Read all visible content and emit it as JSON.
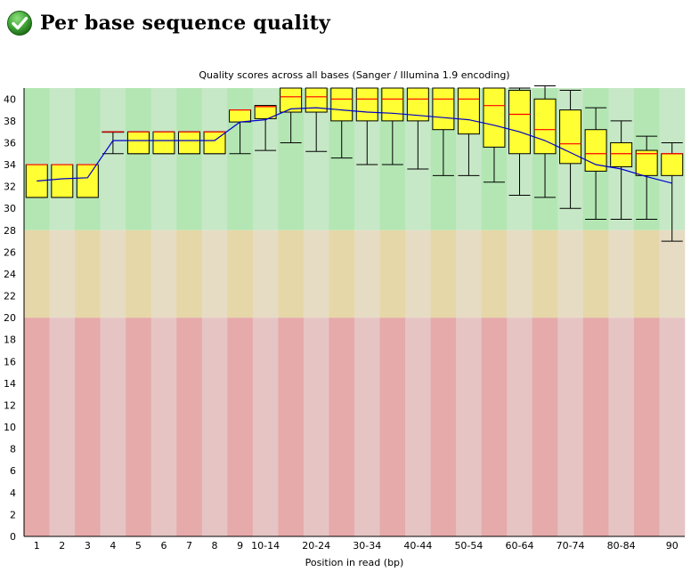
{
  "page": {
    "title": "Per base sequence quality",
    "status_icon": "check-icon",
    "status_color": "#3fa535"
  },
  "chart_data": {
    "type": "box",
    "title": "Quality scores across all bases (Sanger / Illumina 1.9 encoding)",
    "xlabel": "Position in read (bp)",
    "ylabel": "",
    "ylim": [
      0,
      41
    ],
    "yticks": [
      0,
      2,
      4,
      6,
      8,
      10,
      12,
      14,
      16,
      18,
      20,
      22,
      24,
      26,
      28,
      30,
      32,
      34,
      36,
      38,
      40
    ],
    "legend": "none",
    "zones": [
      {
        "from": 28,
        "to": 41,
        "colors": [
          "#b3e6b3",
          "#c6e8c6"
        ]
      },
      {
        "from": 20,
        "to": 28,
        "colors": [
          "#e6d7a8",
          "#e6dcc4"
        ]
      },
      {
        "from": 0,
        "to": 20,
        "colors": [
          "#e6aaaa",
          "#e6c4c4"
        ]
      }
    ],
    "box_color": "#ffff33",
    "median_color": "#ff0000",
    "mean_color": "#0000cc",
    "categories": [
      "1",
      "2",
      "3",
      "4",
      "5",
      "6",
      "7",
      "8",
      "9",
      "10-14",
      "15-19",
      "20-24",
      "25-29",
      "30-34",
      "35-39",
      "40-44",
      "45-49",
      "50-54",
      "55-59",
      "60-64",
      "65-69",
      "70-74",
      "75-79",
      "80-84",
      "85-89",
      "90"
    ],
    "tick_labels": [
      "1",
      "2",
      "3",
      "4",
      "5",
      "6",
      "7",
      "8",
      "9",
      "10-14",
      "",
      "20-24",
      "",
      "30-34",
      "",
      "40-44",
      "",
      "50-54",
      "",
      "60-64",
      "",
      "70-74",
      "",
      "80-84",
      "",
      "90"
    ],
    "series": [
      {
        "low": [
          31,
          31,
          31,
          35,
          35,
          35,
          35,
          35,
          35,
          35.3,
          36,
          35.2,
          34.6,
          34,
          34,
          33.6,
          33,
          33,
          32.4,
          31.2,
          31,
          30,
          29,
          29,
          29,
          27
        ],
        "q1": [
          31,
          31,
          31,
          37,
          35,
          35,
          35,
          35,
          37.9,
          38.2,
          38.8,
          38.8,
          38,
          38,
          38,
          38,
          37.2,
          36.8,
          35.6,
          35,
          35,
          34.1,
          33.4,
          33.8,
          33,
          33
        ],
        "median": [
          34,
          34,
          34,
          37,
          37,
          37,
          37,
          37,
          39,
          39.3,
          40.2,
          40.2,
          40,
          40,
          40,
          40,
          40,
          40,
          39.4,
          38.6,
          37.2,
          35.9,
          35,
          35,
          35,
          35
        ],
        "q3": [
          34,
          34,
          34,
          37,
          37,
          37,
          37,
          37,
          39,
          39.4,
          41,
          41,
          41,
          41,
          41,
          41,
          41,
          41,
          41,
          40.8,
          40,
          39,
          37.2,
          36,
          35.3,
          35
        ],
        "high": [
          34,
          34,
          34,
          37,
          37,
          37,
          37,
          37,
          39,
          39.4,
          41,
          41,
          41,
          41,
          41,
          41,
          41,
          41,
          41,
          41,
          41.2,
          40.8,
          39.2,
          38,
          36.6,
          36
        ],
        "mean": [
          32.5,
          32.7,
          32.8,
          36.2,
          36.2,
          36.2,
          36.2,
          36.2,
          37.9,
          38.1,
          39.1,
          39.2,
          39,
          38.8,
          38.7,
          38.5,
          38.3,
          38.1,
          37.6,
          37,
          36.2,
          35.1,
          34,
          33.6,
          32.9,
          32.3
        ]
      }
    ]
  }
}
